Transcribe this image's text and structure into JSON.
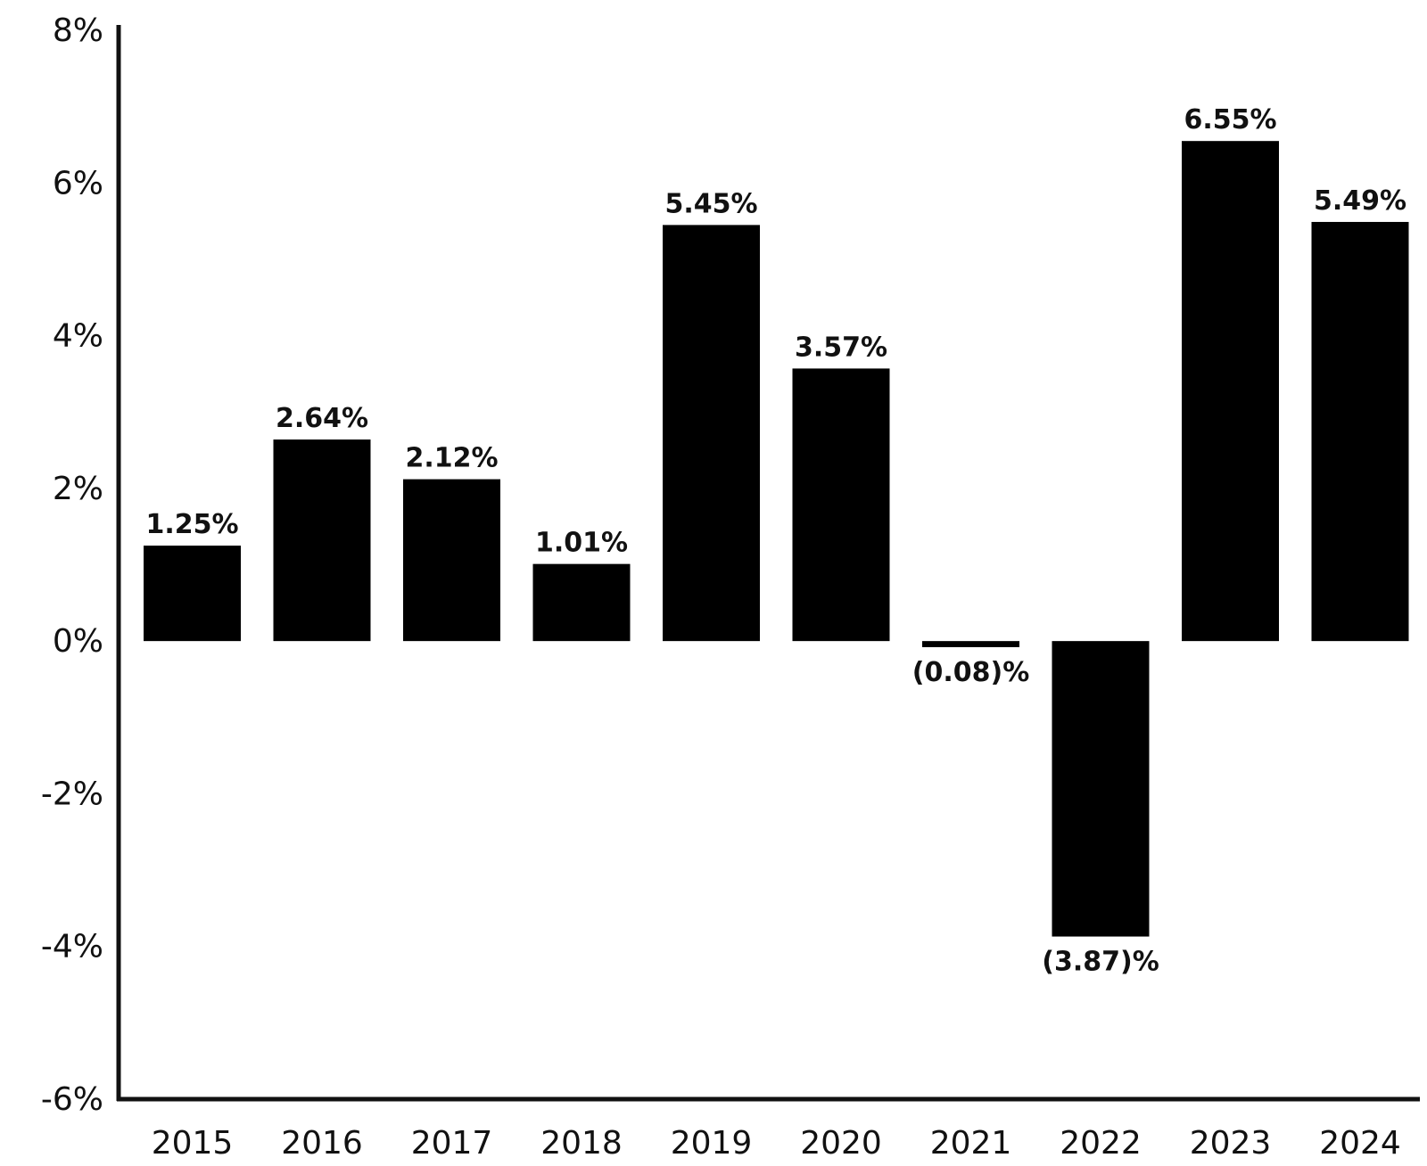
{
  "chart_data": {
    "type": "bar",
    "title": "",
    "xlabel": "",
    "ylabel": "",
    "categories": [
      "2015",
      "2016",
      "2017",
      "2018",
      "2019",
      "2020",
      "2021",
      "2022",
      "2023",
      "2024"
    ],
    "values": [
      1.25,
      2.64,
      2.12,
      1.01,
      5.45,
      3.57,
      -0.08,
      -3.87,
      6.55,
      5.49
    ],
    "data_labels": [
      "1.25%",
      "2.64%",
      "2.12%",
      "1.01%",
      "5.45%",
      "3.57%",
      "(0.08)%",
      "(3.87)%",
      "6.55%",
      "5.49%"
    ],
    "ylim": [
      -6,
      8
    ],
    "yticks": [
      -6,
      -4,
      -2,
      0,
      2,
      4,
      6,
      8
    ],
    "ytick_labels": [
      "-6%",
      "-4%",
      "-2%",
      "0%",
      "2%",
      "4%",
      "6%",
      "8%"
    ],
    "grid": false,
    "legend": "none",
    "colors": {
      "bar": "#000000",
      "axis": "#111111",
      "text": "#111111"
    }
  }
}
